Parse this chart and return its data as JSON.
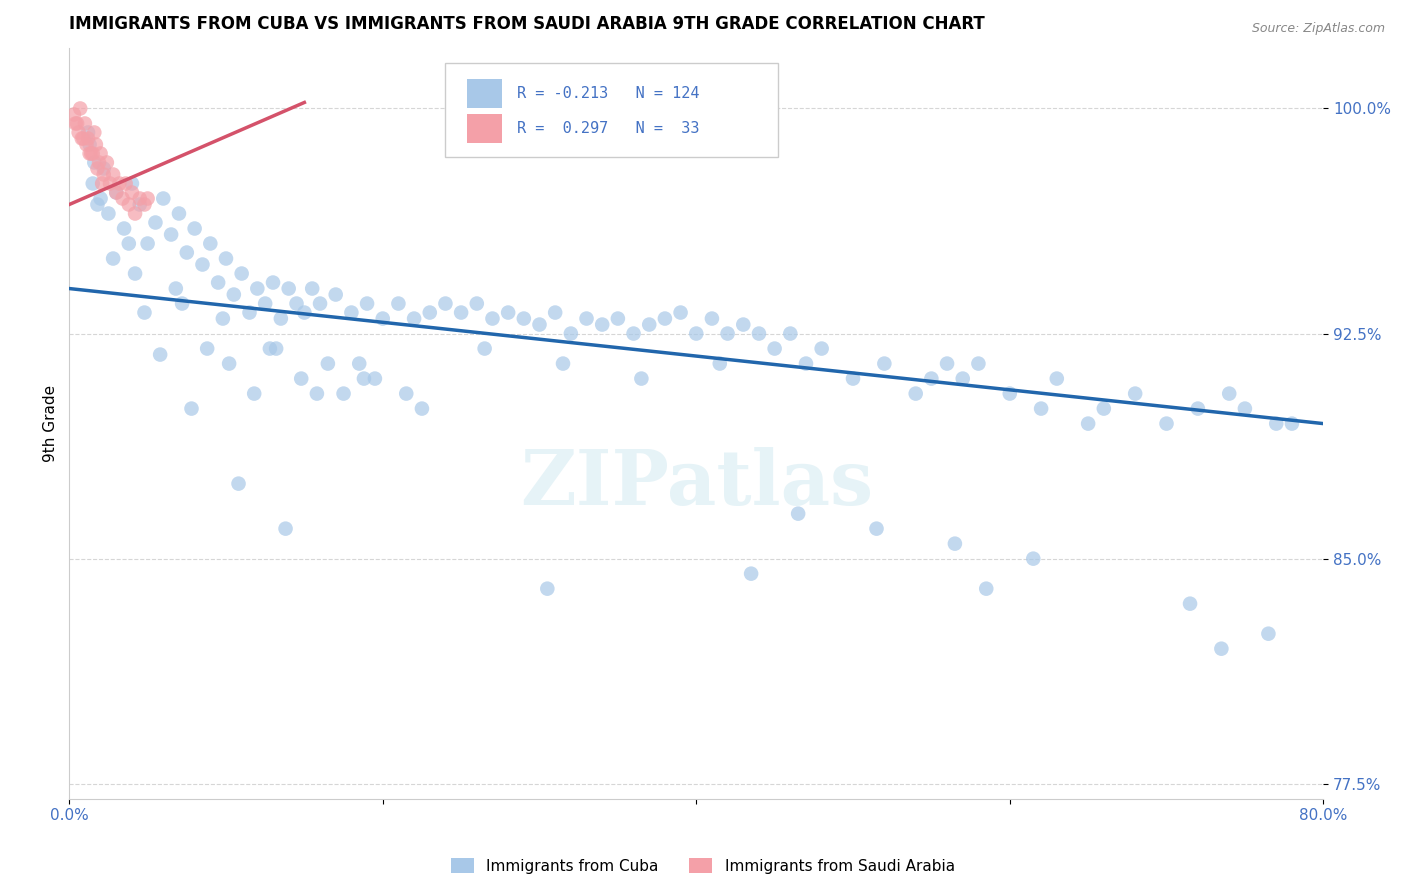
{
  "title": "IMMIGRANTS FROM CUBA VS IMMIGRANTS FROM SAUDI ARABIA 9TH GRADE CORRELATION CHART",
  "source": "Source: ZipAtlas.com",
  "ylabel": "9th Grade",
  "xlim": [
    0.0,
    80.0
  ],
  "ylim": [
    77.0,
    102.0
  ],
  "yticks": [
    77.5,
    85.0,
    92.5,
    100.0
  ],
  "ytick_labels": [
    "77.5%",
    "85.0%",
    "92.5%",
    "100.0%"
  ],
  "xtick_positions": [
    0.0,
    20.0,
    40.0,
    60.0,
    80.0
  ],
  "xtick_labels": [
    "0.0%",
    "",
    "",
    "",
    "80.0%"
  ],
  "blue_color": "#a8c8e8",
  "pink_color": "#f4a0a8",
  "blue_line_color": "#2166ac",
  "pink_line_color": "#d4526a",
  "title_fontsize": 12,
  "axis_label_color": "#4472c4",
  "watermark": "ZIPatlas",
  "blue_trendline_x": [
    0.0,
    80.0
  ],
  "blue_trendline_y": [
    94.0,
    89.5
  ],
  "pink_trendline_x": [
    0.0,
    15.0
  ],
  "pink_trendline_y": [
    96.8,
    100.2
  ],
  "cuba_x": [
    1.5,
    1.8,
    2.2,
    2.5,
    3.0,
    3.5,
    4.0,
    4.5,
    5.0,
    5.5,
    6.0,
    6.5,
    7.0,
    7.5,
    8.0,
    8.5,
    9.0,
    9.5,
    10.0,
    10.5,
    11.0,
    11.5,
    12.0,
    12.5,
    13.0,
    13.5,
    14.0,
    14.5,
    15.0,
    15.5,
    16.0,
    17.0,
    18.0,
    19.0,
    20.0,
    21.0,
    22.0,
    23.0,
    24.0,
    25.0,
    26.0,
    27.0,
    28.0,
    29.0,
    30.0,
    31.0,
    32.0,
    33.0,
    34.0,
    35.0,
    36.0,
    37.0,
    38.0,
    39.0,
    40.0,
    41.0,
    42.0,
    43.0,
    44.0,
    45.0,
    46.0,
    47.0,
    48.0,
    50.0,
    52.0,
    54.0,
    55.0,
    56.0,
    57.0,
    58.0,
    60.0,
    62.0,
    63.0,
    65.0,
    66.0,
    68.0,
    70.0,
    72.0,
    74.0,
    75.0,
    77.0,
    78.0,
    1.2,
    1.3,
    1.6,
    2.8,
    4.2,
    5.8,
    7.2,
    8.8,
    10.2,
    11.8,
    13.2,
    14.8,
    16.5,
    17.5,
    18.5,
    19.5,
    21.5,
    22.5,
    2.0,
    3.8,
    6.8,
    9.8,
    12.8,
    15.8,
    18.8,
    26.5,
    31.5,
    36.5,
    41.5,
    46.5,
    51.5,
    56.5,
    61.5,
    71.5,
    76.5,
    4.8,
    7.8,
    10.8,
    13.8,
    30.5,
    43.5,
    58.5,
    73.5
  ],
  "cuba_y": [
    97.5,
    96.8,
    98.0,
    96.5,
    97.2,
    96.0,
    97.5,
    96.8,
    95.5,
    96.2,
    97.0,
    95.8,
    96.5,
    95.2,
    96.0,
    94.8,
    95.5,
    94.2,
    95.0,
    93.8,
    94.5,
    93.2,
    94.0,
    93.5,
    94.2,
    93.0,
    94.0,
    93.5,
    93.2,
    94.0,
    93.5,
    93.8,
    93.2,
    93.5,
    93.0,
    93.5,
    93.0,
    93.2,
    93.5,
    93.2,
    93.5,
    93.0,
    93.2,
    93.0,
    92.8,
    93.2,
    92.5,
    93.0,
    92.8,
    93.0,
    92.5,
    92.8,
    93.0,
    93.2,
    92.5,
    93.0,
    92.5,
    92.8,
    92.5,
    92.0,
    92.5,
    91.5,
    92.0,
    91.0,
    91.5,
    90.5,
    91.0,
    91.5,
    91.0,
    91.5,
    90.5,
    90.0,
    91.0,
    89.5,
    90.0,
    90.5,
    89.5,
    90.0,
    90.5,
    90.0,
    89.5,
    89.5,
    99.2,
    98.8,
    98.2,
    95.0,
    94.5,
    91.8,
    93.5,
    92.0,
    91.5,
    90.5,
    92.0,
    91.0,
    91.5,
    90.5,
    91.5,
    91.0,
    90.5,
    90.0,
    97.0,
    95.5,
    94.0,
    93.0,
    92.0,
    90.5,
    91.0,
    92.0,
    91.5,
    91.0,
    91.5,
    86.5,
    86.0,
    85.5,
    85.0,
    83.5,
    82.5,
    93.2,
    90.0,
    87.5,
    86.0,
    84.0,
    84.5,
    84.0,
    82.0
  ],
  "saudi_x": [
    0.5,
    0.7,
    0.8,
    1.0,
    1.2,
    1.4,
    1.6,
    1.8,
    2.0,
    2.2,
    2.4,
    2.6,
    2.8,
    3.0,
    3.2,
    3.4,
    3.6,
    3.8,
    4.0,
    4.2,
    4.5,
    4.8,
    5.0,
    0.3,
    0.4,
    0.6,
    0.9,
    1.1,
    1.3,
    1.5,
    1.7,
    1.9,
    2.1
  ],
  "saudi_y": [
    99.5,
    100.0,
    99.0,
    99.5,
    99.0,
    98.5,
    99.2,
    98.0,
    98.5,
    97.8,
    98.2,
    97.5,
    97.8,
    97.2,
    97.5,
    97.0,
    97.5,
    96.8,
    97.2,
    96.5,
    97.0,
    96.8,
    97.0,
    99.8,
    99.5,
    99.2,
    99.0,
    98.8,
    98.5,
    98.5,
    98.8,
    98.2,
    97.5
  ]
}
